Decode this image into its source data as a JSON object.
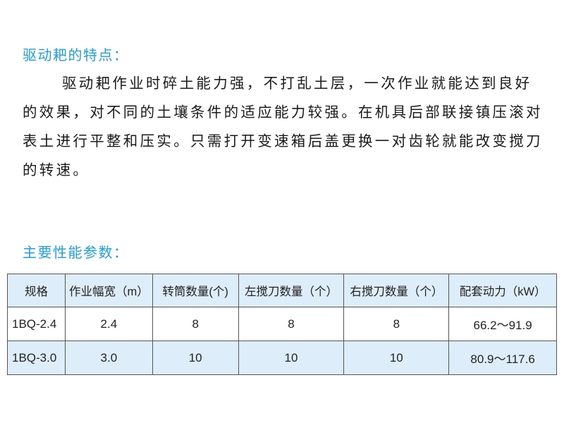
{
  "features": {
    "heading": "驱动耙的特点：",
    "lines": [
      "驱动耙作业时碎土能力强，不打乱土层，一次作业就能达到良好",
      "的效果，对不同的土壤条件的适应能力较强。在机具后部联接镇压滚对",
      "表土进行平整和压实。只需打开变速箱后盖更换一对齿轮就能改变搅刀",
      "的转速。"
    ]
  },
  "specs": {
    "heading": "主要性能参数：",
    "headers": [
      "规格",
      "作业幅宽（m）",
      "转筒数量(个)",
      "左搅刀数量（个）",
      "右搅刀数量（个）",
      "配套动力（kW）"
    ],
    "rows": [
      [
        "1BQ-2.4",
        "2.4",
        "8",
        "8",
        "8",
        "66.2～91.9"
      ],
      [
        "1BQ-3.0",
        "3.0",
        "10",
        "10",
        "10",
        "80.9～117.6"
      ]
    ]
  },
  "colors": {
    "heading": "#1ea0e0",
    "table_fill": "#ddeefa"
  }
}
